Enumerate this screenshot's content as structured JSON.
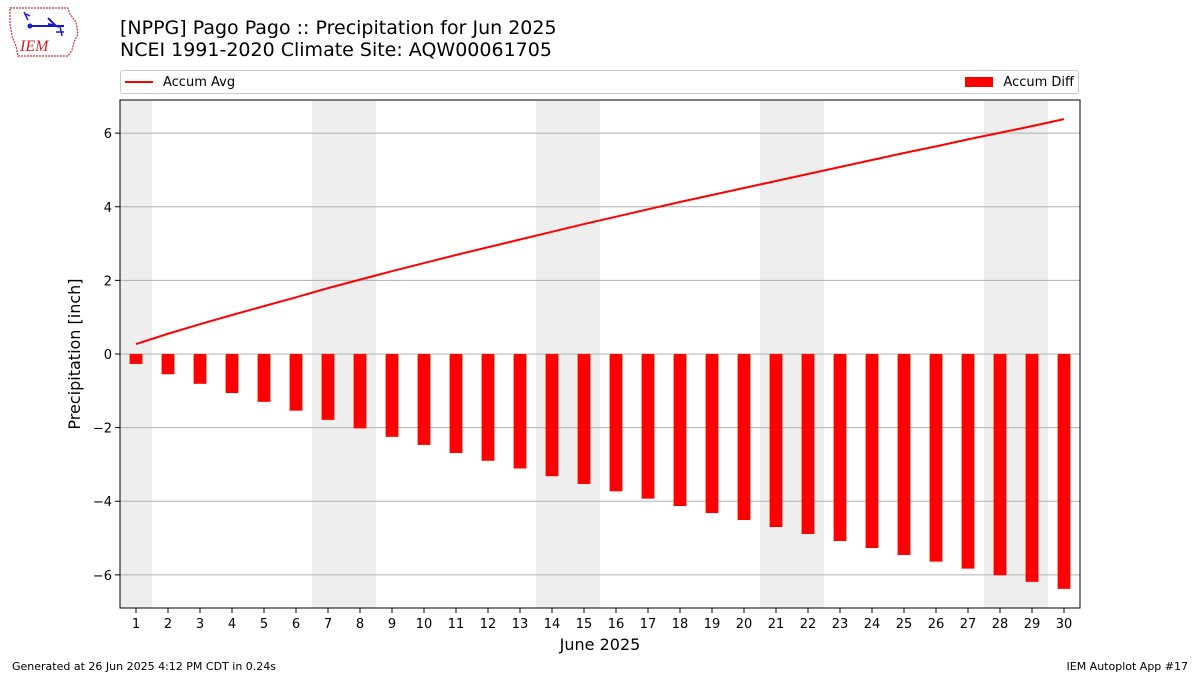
{
  "header": {
    "title_line1": "[NPPG] Pago Pago :: Precipitation for Jun 2025",
    "title_line2": "NCEI 1991-2020 Climate Site: AQW00061705"
  },
  "logo": {
    "text": "IEM"
  },
  "legend": {
    "line_label": "Accum Avg",
    "bar_label": "Accum Diff"
  },
  "footer": {
    "left": "Generated at 26 Jun 2025 4:12 PM CDT in 0.24s",
    "right": "IEM Autoplot App #17"
  },
  "colors": {
    "series": "#ff0000",
    "weekend_shade": "#eeeeee",
    "grid": "#b0b0b0"
  },
  "chart_data": {
    "type": "bar",
    "xlabel": "June 2025",
    "ylabel": "Precipitation [inch]",
    "ylim": [
      -6.9,
      6.9
    ],
    "yticks": [
      -6,
      -4,
      -2,
      0,
      2,
      4,
      6
    ],
    "ytick_labels": [
      "−6",
      "−4",
      "−2",
      "0",
      "2",
      "4",
      "6"
    ],
    "grid": "horizontal",
    "legend_placement": "top",
    "categories": [
      1,
      2,
      3,
      4,
      5,
      6,
      7,
      8,
      9,
      10,
      11,
      12,
      13,
      14,
      15,
      16,
      17,
      18,
      19,
      20,
      21,
      22,
      23,
      24,
      25,
      26,
      27,
      28,
      29,
      30
    ],
    "shaded_days": [
      1,
      7,
      8,
      14,
      15,
      21,
      22,
      28,
      29
    ],
    "series": [
      {
        "name": "Accum Diff",
        "type": "bar",
        "values": [
          -0.27,
          -0.55,
          -0.81,
          -1.06,
          -1.3,
          -1.54,
          -1.79,
          -2.02,
          -2.25,
          -2.47,
          -2.69,
          -2.9,
          -3.11,
          -3.32,
          -3.53,
          -3.73,
          -3.93,
          -4.13,
          -4.32,
          -4.51,
          -4.7,
          -4.89,
          -5.08,
          -5.27,
          -5.46,
          -5.64,
          -5.83,
          -6.01,
          -6.19,
          -6.38
        ]
      },
      {
        "name": "Accum Avg",
        "type": "line",
        "values": [
          0.27,
          0.55,
          0.81,
          1.06,
          1.3,
          1.54,
          1.79,
          2.02,
          2.25,
          2.47,
          2.69,
          2.9,
          3.11,
          3.32,
          3.53,
          3.73,
          3.93,
          4.13,
          4.32,
          4.51,
          4.7,
          4.89,
          5.08,
          5.27,
          5.46,
          5.64,
          5.83,
          6.01,
          6.19,
          6.38
        ]
      }
    ]
  }
}
